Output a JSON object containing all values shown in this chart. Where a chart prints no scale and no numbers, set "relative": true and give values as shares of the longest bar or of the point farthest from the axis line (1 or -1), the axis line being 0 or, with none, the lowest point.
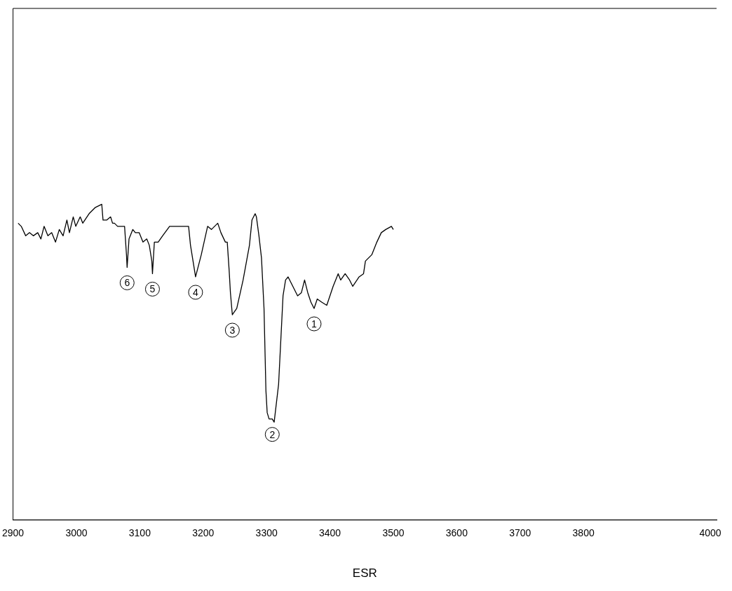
{
  "chart_data": {
    "type": "line",
    "relative": true,
    "xlabel": "ESR",
    "color": "#000000",
    "marker": "none",
    "line_style": "solid",
    "grid": false,
    "legend": false,
    "xlim": [
      2900,
      4010
    ],
    "xticks": [
      2900,
      3000,
      3100,
      3200,
      3300,
      3400,
      3500,
      3600,
      3700,
      3800,
      4000
    ],
    "x": [
      2908,
      2913,
      2920,
      2926,
      2932,
      2939,
      2944,
      2949,
      2955,
      2961,
      2967,
      2973,
      2979,
      2985,
      2989,
      2995,
      2999,
      3006,
      3010,
      3020,
      3030,
      3040,
      3042,
      3048,
      3054,
      3057,
      3060,
      3065,
      3076,
      3079,
      3080,
      3083,
      3089,
      3093,
      3099,
      3105,
      3111,
      3115,
      3119,
      3120,
      3123,
      3129,
      3136,
      3147,
      3162,
      3177,
      3180,
      3188,
      3197,
      3207,
      3213,
      3223,
      3228,
      3235,
      3238,
      3241,
      3243,
      3246,
      3253,
      3263,
      3273,
      3277,
      3282,
      3284,
      3288,
      3292,
      3296,
      3299,
      3301,
      3304,
      3309,
      3312,
      3319,
      3324,
      3326,
      3330,
      3334,
      3339,
      3349,
      3355,
      3360,
      3365,
      3370,
      3375,
      3380,
      3387,
      3395,
      3405,
      3413,
      3417,
      3424,
      3431,
      3436,
      3446,
      3453,
      3456,
      3466,
      3474,
      3481,
      3488,
      3497,
      3500
    ],
    "values": [
      0.94,
      0.93,
      0.9,
      0.91,
      0.9,
      0.91,
      0.89,
      0.93,
      0.9,
      0.91,
      0.88,
      0.92,
      0.9,
      0.95,
      0.91,
      0.96,
      0.93,
      0.96,
      0.94,
      0.97,
      0.99,
      1.0,
      0.95,
      0.95,
      0.96,
      0.94,
      0.94,
      0.93,
      0.93,
      0.84,
      0.8,
      0.89,
      0.92,
      0.91,
      0.91,
      0.88,
      0.89,
      0.87,
      0.82,
      0.78,
      0.88,
      0.88,
      0.9,
      0.93,
      0.93,
      0.93,
      0.87,
      0.77,
      0.84,
      0.93,
      0.92,
      0.94,
      0.91,
      0.88,
      0.88,
      0.79,
      0.72,
      0.65,
      0.67,
      0.76,
      0.87,
      0.95,
      0.97,
      0.96,
      0.9,
      0.83,
      0.67,
      0.41,
      0.34,
      0.32,
      0.32,
      0.31,
      0.43,
      0.63,
      0.71,
      0.76,
      0.77,
      0.75,
      0.71,
      0.72,
      0.76,
      0.72,
      0.69,
      0.67,
      0.7,
      0.69,
      0.68,
      0.74,
      0.78,
      0.76,
      0.78,
      0.76,
      0.74,
      0.77,
      0.78,
      0.82,
      0.84,
      0.88,
      0.91,
      0.92,
      0.93,
      0.92
    ],
    "annotations": [
      {
        "text": "1",
        "x": 3375,
        "y": 0.67
      },
      {
        "text": "2",
        "x": 3309,
        "y": 0.32
      },
      {
        "text": "3",
        "x": 3246,
        "y": 0.65
      },
      {
        "text": "4",
        "x": 3188,
        "y": 0.77
      },
      {
        "text": "5",
        "x": 3120,
        "y": 0.78
      },
      {
        "text": "6",
        "x": 3080,
        "y": 0.8
      }
    ]
  }
}
